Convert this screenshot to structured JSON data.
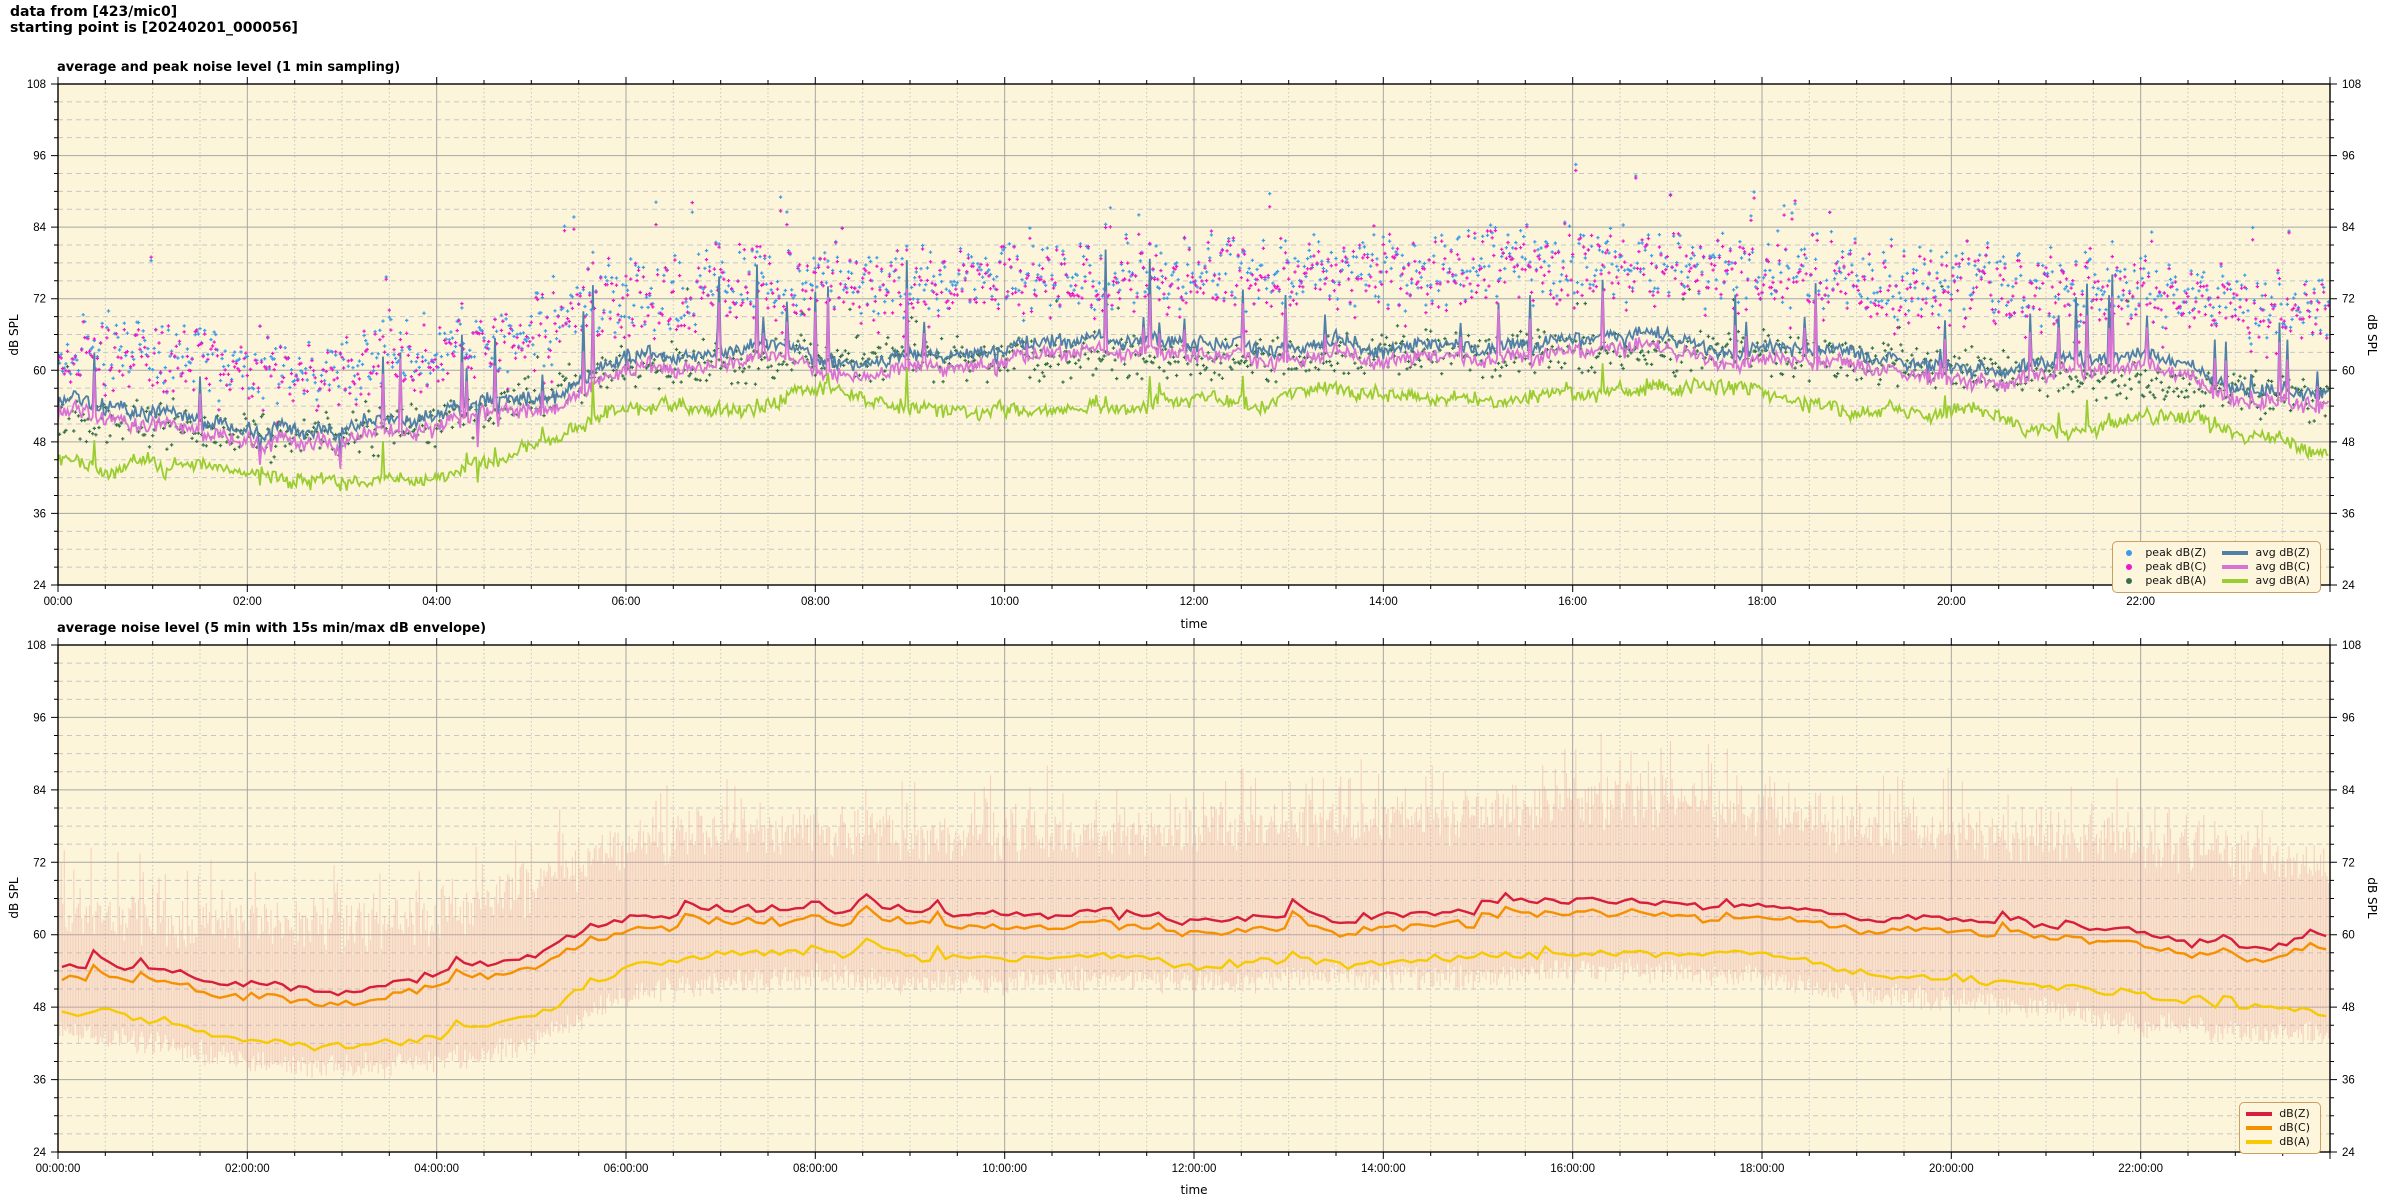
{
  "header": {
    "line1": "data from [423/mic0]",
    "line2": "starting point is [20240201_000056]"
  },
  "colors": {
    "page_background": "#ffffff",
    "plot_background": "#fcf5da",
    "grid_major": "#a6a6a6",
    "grid_minor": "#c6c6c6",
    "axis_frame": "#000000",
    "text": "#000000",
    "legend_border": "#c9a063",
    "legend_background": "#fdf6dc"
  },
  "chart_data": [
    {
      "type": "line+scatter",
      "title": "average and peak noise level (1 min sampling)",
      "xlabel": "time",
      "ylabel": "dB SPL",
      "ylim": [
        24,
        108
      ],
      "ytick_values": [
        24,
        36,
        48,
        60,
        72,
        84,
        96,
        108
      ],
      "yminor_step": 3,
      "x_span_hours": 24,
      "xtick_every_hours": 2,
      "xminor_every_hours": 0.5,
      "xtick_labels": [
        "00:00",
        "02:00",
        "04:00",
        "06:00",
        "08:00",
        "10:00",
        "12:00",
        "14:00",
        "16:00",
        "18:00",
        "20:00",
        "22:00"
      ],
      "sampling_minutes": 1,
      "grid": true,
      "legend_position": "bottom-right",
      "legend": [
        {
          "label": "peak dB(Z)",
          "type": "point",
          "color": "#3a9ce8"
        },
        {
          "label": "peak dB(C)",
          "type": "point",
          "color": "#ee18c8"
        },
        {
          "label": "peak dB(A)",
          "type": "point",
          "color": "#35714b"
        },
        {
          "label": "avg dB(Z)",
          "type": "line",
          "color": "#507fa8"
        },
        {
          "label": "avg dB(C)",
          "type": "line",
          "color": "#d972d4"
        },
        {
          "label": "avg dB(A)",
          "type": "line",
          "color": "#9bcd32"
        }
      ],
      "anchors_hourly": {
        "hours": [
          0,
          1,
          2,
          3,
          4,
          5,
          6,
          7,
          8,
          9,
          10,
          11,
          12,
          13,
          14,
          15,
          16,
          17,
          18,
          19,
          20,
          21,
          22,
          23,
          24
        ],
        "avg_dBZ": [
          55,
          54,
          52,
          51,
          53,
          57,
          62,
          63,
          63,
          63,
          63,
          64,
          63,
          64,
          64,
          64,
          65,
          65,
          65,
          63,
          62,
          62,
          61,
          58,
          56
        ],
        "avg_dBC": [
          53,
          52,
          50,
          49,
          51,
          55,
          60,
          61,
          61,
          61,
          61,
          62,
          61,
          62,
          62,
          62,
          63,
          63,
          63,
          61,
          60,
          60,
          59,
          56,
          54
        ],
        "avg_dBA": [
          45,
          44,
          41,
          40,
          42,
          46,
          53,
          55,
          55,
          55,
          55,
          56,
          55,
          56,
          56,
          56,
          57,
          57,
          56,
          54,
          53,
          52,
          52,
          49,
          46
        ],
        "peak_dBZ_mean": [
          64,
          62,
          61,
          61,
          63,
          67,
          73,
          75,
          75,
          75,
          75,
          76,
          76,
          76,
          77,
          77,
          78,
          78,
          77,
          76,
          75,
          74,
          73,
          71,
          69
        ],
        "peak_dBC_mean": [
          63,
          61,
          60,
          60,
          62,
          66,
          72,
          74,
          74,
          74,
          74,
          75,
          75,
          75,
          76,
          76,
          77,
          77,
          76,
          75,
          74,
          73,
          72,
          70,
          68
        ],
        "peak_dBA_mean": [
          52,
          51,
          49,
          49,
          51,
          55,
          60,
          61,
          62,
          62,
          62,
          62,
          62,
          62,
          63,
          63,
          63,
          63,
          63,
          61,
          60,
          59,
          58,
          56,
          55
        ]
      },
      "synthesis": {
        "seed": 1234,
        "scatter_spread_dB": {
          "peak_dBZ": 7.5,
          "peak_dBC": 7.5,
          "peak_dBA": 4.5
        }
      }
    },
    {
      "type": "line+envelope",
      "title": "average noise level (5 min with 15s min/max dB envelope)",
      "xlabel": "time",
      "ylabel": "dB SPL",
      "ylim": [
        24,
        108
      ],
      "ytick_values": [
        24,
        36,
        48,
        60,
        72,
        84,
        96,
        108
      ],
      "yminor_step": 3,
      "x_span_hours": 24,
      "xtick_every_hours": 2,
      "xminor_every_hours": 0.5,
      "xtick_labels": [
        "00:00:00",
        "02:00:00",
        "04:00:00",
        "06:00:00",
        "08:00:00",
        "10:00:00",
        "12:00:00",
        "14:00:00",
        "16:00:00",
        "18:00:00",
        "20:00:00",
        "22:00:00"
      ],
      "sampling_minutes": 5,
      "envelope_seconds": 15,
      "envelope_color": "#e9a098",
      "envelope_opacity": 0.42,
      "grid": true,
      "legend_position": "bottom-right",
      "legend": [
        {
          "label": "dB(Z)",
          "type": "line",
          "color": "#d71f3c"
        },
        {
          "label": "dB(C)",
          "type": "line",
          "color": "#f59100"
        },
        {
          "label": "dB(A)",
          "type": "line",
          "color": "#f6ca00"
        }
      ],
      "anchors_hourly": {
        "hours": [
          0,
          1,
          2,
          3,
          4,
          5,
          6,
          7,
          8,
          9,
          10,
          11,
          12,
          13,
          14,
          15,
          16,
          17,
          18,
          19,
          20,
          21,
          22,
          23,
          24
        ],
        "dBZ": [
          55,
          53,
          51,
          50,
          52,
          56,
          62,
          63,
          63,
          62,
          62,
          63,
          63,
          63,
          64,
          64,
          66,
          65,
          64,
          62,
          62,
          61,
          59,
          56,
          59
        ],
        "dBC": [
          53,
          51,
          49,
          48,
          50,
          54,
          60,
          61,
          61,
          60,
          60,
          61,
          61,
          61,
          62,
          62,
          64,
          63,
          62,
          60,
          60,
          59,
          57,
          54,
          57
        ],
        "dBA": [
          47,
          45,
          42,
          41,
          42,
          46,
          54,
          56,
          56,
          55,
          55,
          56,
          55,
          56,
          56,
          56,
          57,
          57,
          56,
          53,
          52,
          51,
          49,
          47,
          46
        ],
        "env_max_mean": [
          64,
          62,
          61,
          61,
          63,
          68,
          75,
          77,
          77,
          76,
          76,
          77,
          77,
          78,
          79,
          80,
          82,
          82,
          80,
          78,
          77,
          76,
          75,
          73,
          70
        ],
        "env_min_mean": [
          44,
          42,
          39,
          38,
          39,
          42,
          50,
          52,
          53,
          52,
          52,
          53,
          52,
          53,
          53,
          53,
          54,
          54,
          53,
          50,
          49,
          48,
          45,
          44,
          43
        ]
      },
      "synthesis": {
        "seed": 5678,
        "envelope_seed": 9876
      }
    }
  ]
}
